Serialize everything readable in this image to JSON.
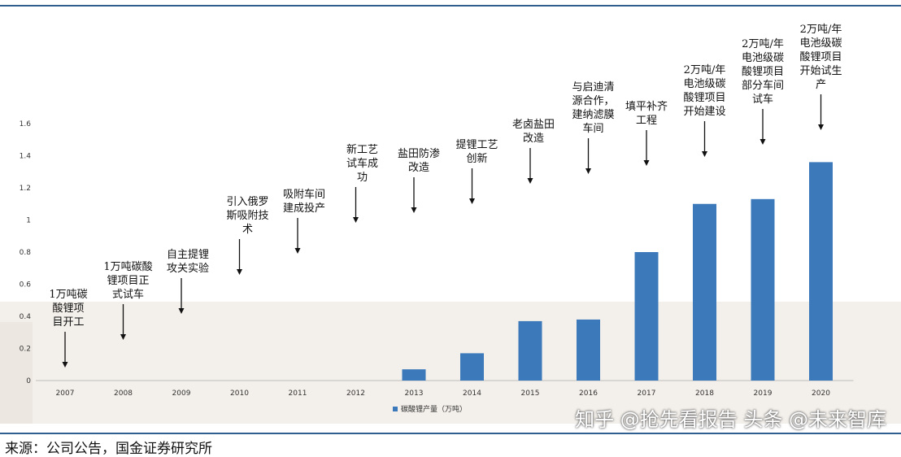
{
  "chart_data": {
    "type": "bar",
    "categories": [
      "2007",
      "2008",
      "2009",
      "2010",
      "2011",
      "2012",
      "2013",
      "2014",
      "2015",
      "2016",
      "2017",
      "2018",
      "2019",
      "2020"
    ],
    "series": [
      {
        "name": "碳酸锂产量（万吨）",
        "values": [
          0,
          0,
          0,
          0,
          0,
          0,
          0.07,
          0.17,
          0.37,
          0.38,
          0.8,
          1.1,
          1.13,
          1.36
        ],
        "color": "#3b79ba"
      }
    ],
    "ylim": [
      0,
      1.6
    ],
    "yticks": [
      "0",
      "0.2",
      "0.4",
      "0.6",
      "0.8",
      "1",
      "1.2",
      "1.4",
      "1.6"
    ],
    "grid": false,
    "legend_position": "bottom-center",
    "annotations": [
      {
        "year": "2007",
        "lines": [
          "1万吨碳",
          "酸锂项",
          "目开工"
        ]
      },
      {
        "year": "2008",
        "lines": [
          "1万吨碳酸",
          "锂项目正",
          "式试车"
        ]
      },
      {
        "year": "2009",
        "lines": [
          "自主提锂",
          "攻关实验"
        ]
      },
      {
        "year": "2010",
        "lines": [
          "引入俄罗",
          "斯吸附技",
          "术"
        ]
      },
      {
        "year": "2011",
        "lines": [
          "吸附车间",
          "建成投产"
        ]
      },
      {
        "year": "2012",
        "lines": [
          "新工艺",
          "试车成",
          "功"
        ]
      },
      {
        "year": "2013",
        "lines": [
          "盐田防渗",
          "改造"
        ]
      },
      {
        "year": "2014",
        "lines": [
          "提锂工艺",
          "创新"
        ]
      },
      {
        "year": "2015",
        "lines": [
          "老卤盐田",
          "改造"
        ]
      },
      {
        "year": "2016",
        "lines": [
          "与启迪清",
          "源合作，",
          "建纳滤膜",
          "车间"
        ]
      },
      {
        "year": "2017",
        "lines": [
          "填平补齐",
          "工程"
        ]
      },
      {
        "year": "2018",
        "lines": [
          "2万吨/年",
          "电池级碳",
          "酸锂项目",
          "开始建设"
        ]
      },
      {
        "year": "2019",
        "lines": [
          "2万吨/年",
          "电池级碳",
          "酸锂项目",
          "部分车间",
          "试车"
        ]
      },
      {
        "year": "2020",
        "lines": [
          "2万吨/年",
          "电池级碳",
          "酸锂项目",
          "开始试生",
          "产"
        ]
      }
    ]
  },
  "footer": {
    "source": "来源：公司公告，国金证券研究所",
    "watermark": "知乎 @抢先看报告 头条 @未来智库"
  }
}
